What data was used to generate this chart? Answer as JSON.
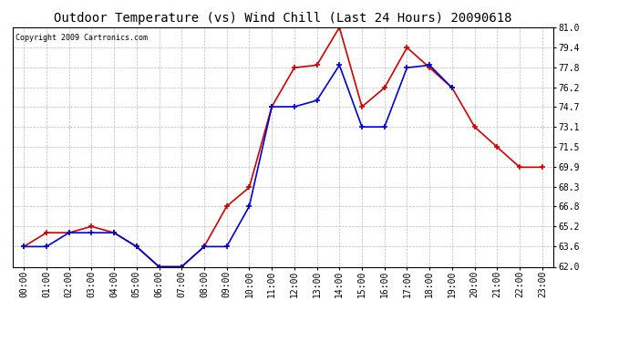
{
  "title": "Outdoor Temperature (vs) Wind Chill (Last 24 Hours) 20090618",
  "copyright": "Copyright 2009 Cartronics.com",
  "hours": [
    "00:00",
    "01:00",
    "02:00",
    "03:00",
    "04:00",
    "05:00",
    "06:00",
    "07:00",
    "08:00",
    "09:00",
    "10:00",
    "11:00",
    "12:00",
    "13:00",
    "14:00",
    "15:00",
    "16:00",
    "17:00",
    "18:00",
    "19:00",
    "20:00",
    "21:00",
    "22:00",
    "23:00"
  ],
  "outdoor_temp": [
    63.6,
    64.7,
    64.7,
    65.2,
    64.7,
    63.6,
    62.0,
    62.0,
    63.6,
    66.8,
    68.3,
    74.7,
    77.8,
    78.0,
    81.0,
    74.7,
    76.2,
    79.4,
    77.8,
    76.2,
    73.1,
    71.5,
    69.9,
    69.9
  ],
  "wind_chill": [
    63.6,
    63.6,
    64.7,
    64.7,
    64.7,
    63.6,
    62.0,
    62.0,
    63.6,
    63.6,
    66.8,
    74.7,
    74.7,
    75.2,
    78.0,
    73.1,
    73.1,
    77.8,
    78.0,
    76.2,
    null,
    null,
    null,
    null
  ],
  "ylim_min": 62.0,
  "ylim_max": 81.0,
  "yticks": [
    62.0,
    63.6,
    65.2,
    66.8,
    68.3,
    69.9,
    71.5,
    73.1,
    74.7,
    76.2,
    77.8,
    79.4,
    81.0
  ],
  "temp_color": "#cc0000",
  "chill_color": "#0000cc",
  "grid_color": "#bbbbbb",
  "bg_color": "#ffffff",
  "title_fontsize": 10,
  "copyright_fontsize": 6,
  "tick_fontsize": 7,
  "ytick_fontsize": 7
}
